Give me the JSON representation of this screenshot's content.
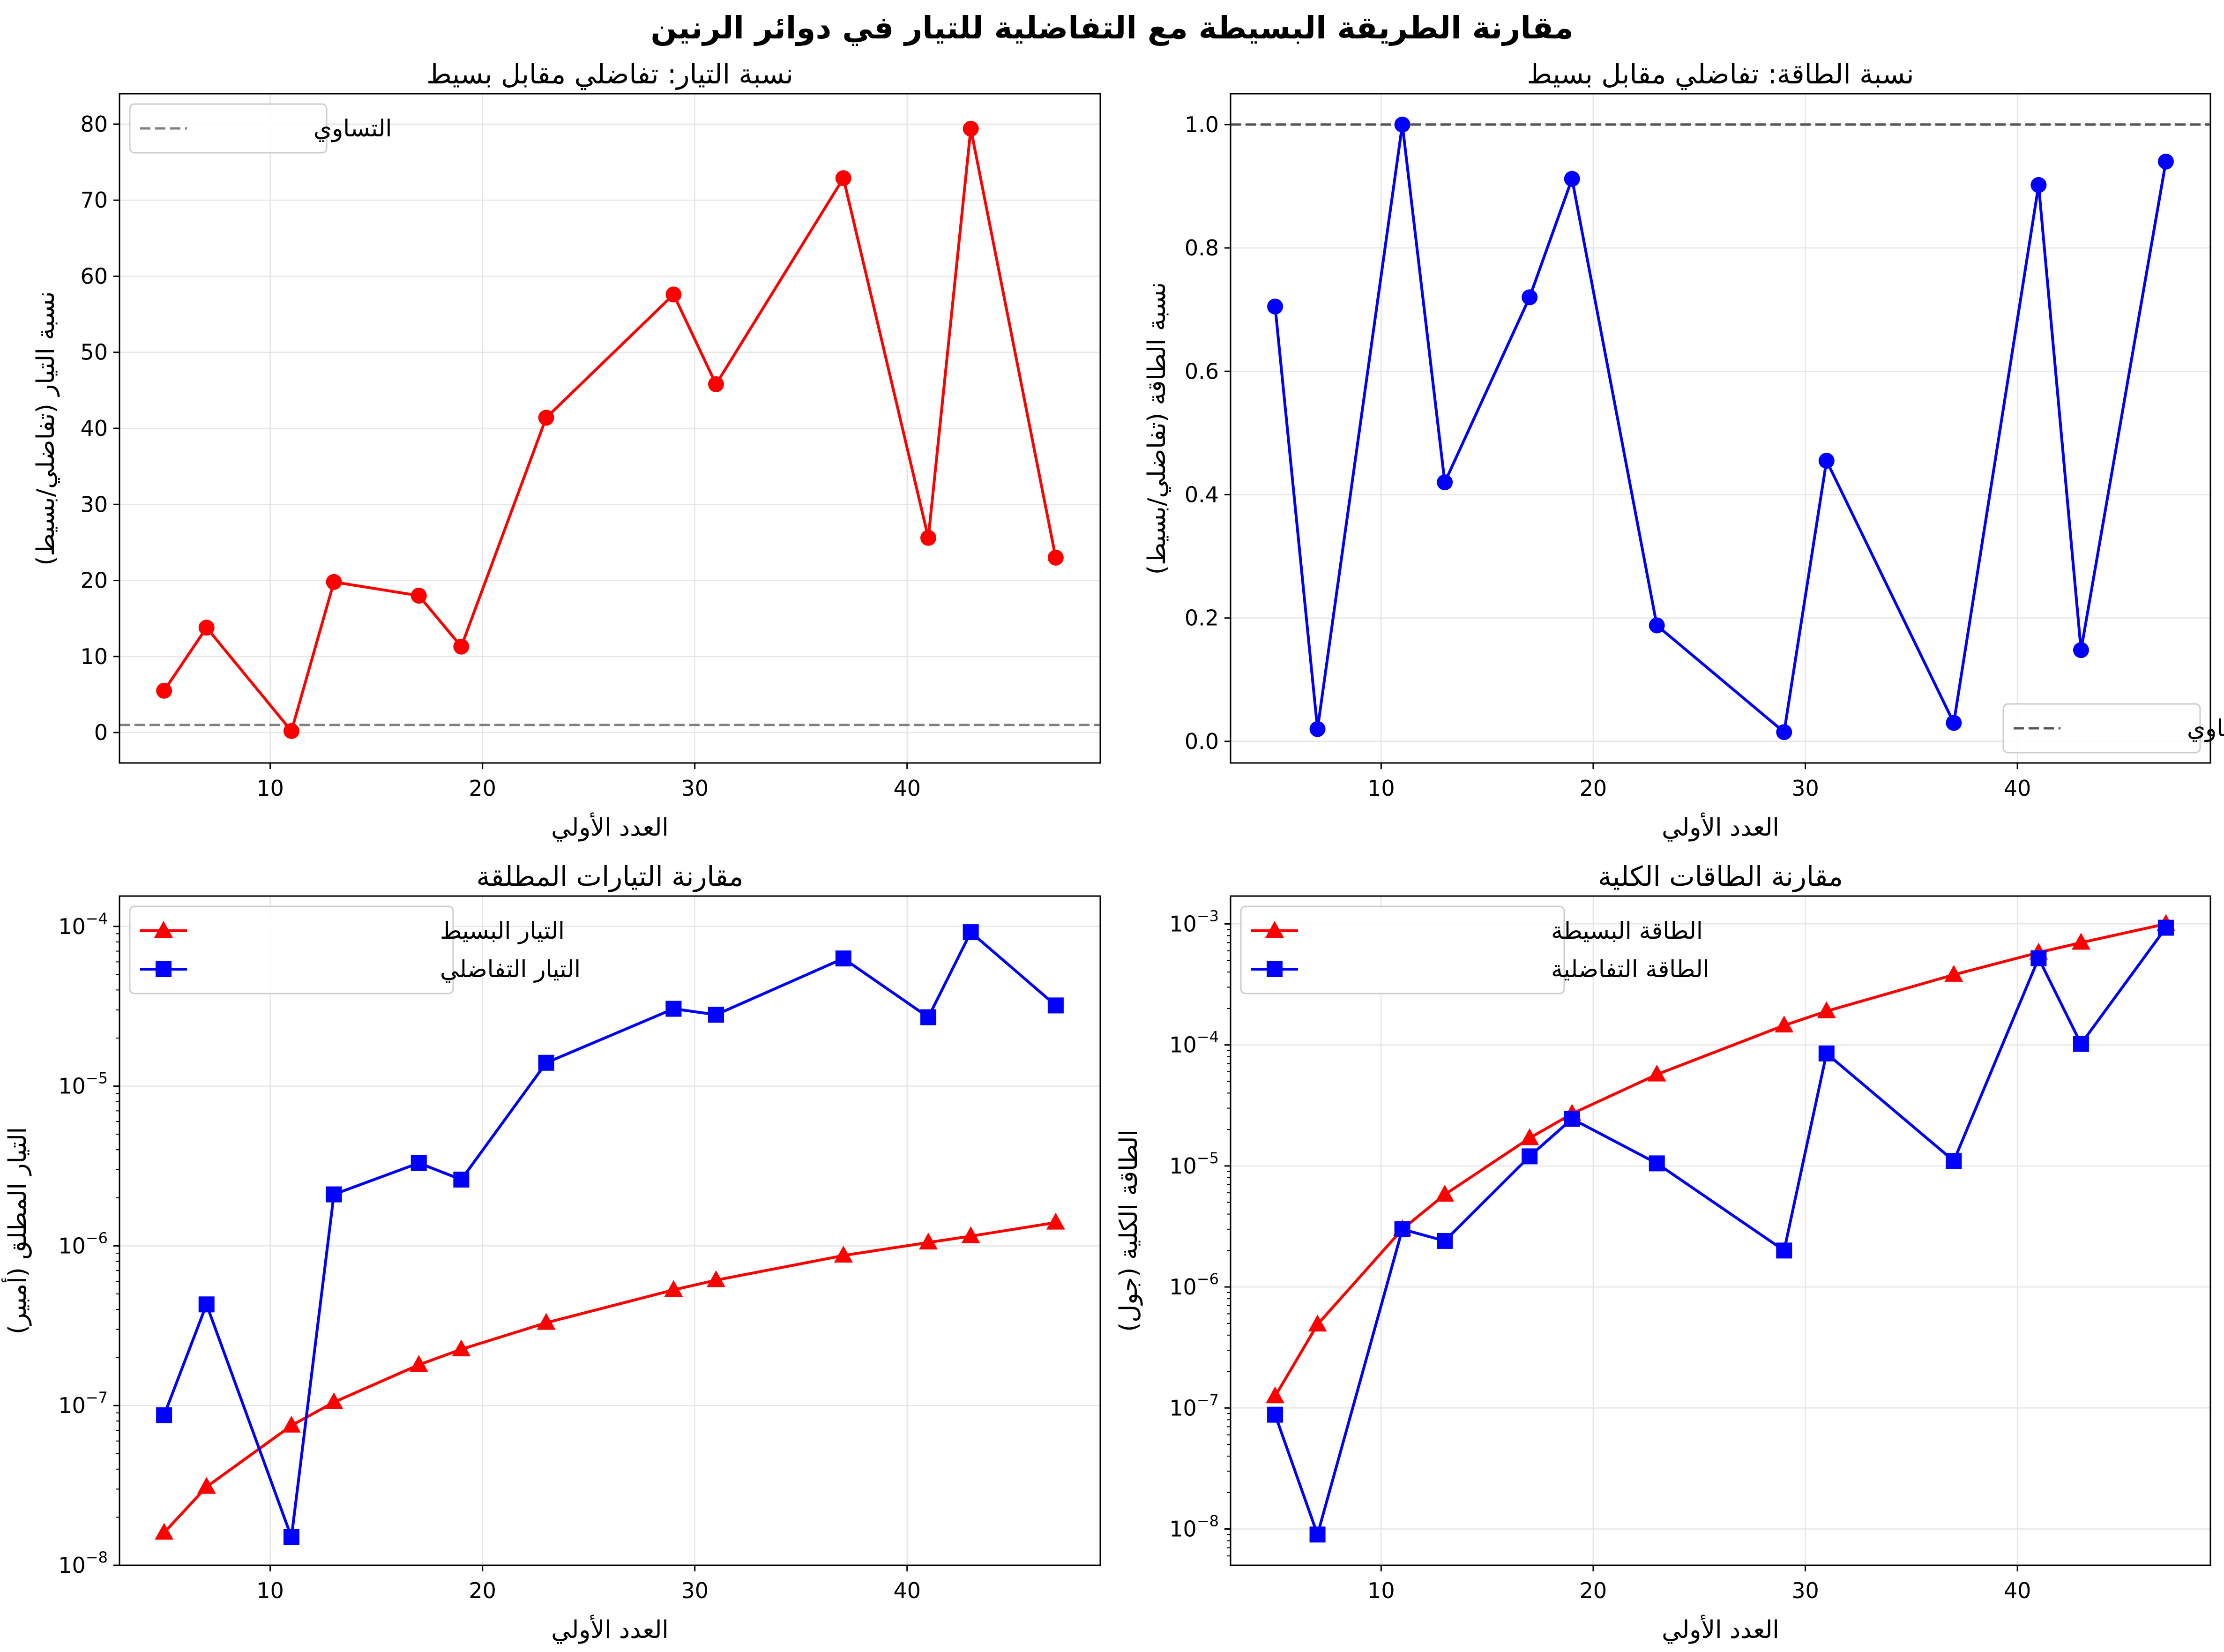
{
  "figure": {
    "title": "مقارنة الطريقة البسيطة مع التفاضلية للتيار في دوائر الرنين"
  },
  "chart_data": [
    {
      "type": "line",
      "title": "نسبة التيار: تفاضلي مقابل بسيط",
      "xlabel": "العدد الأولي",
      "ylabel": "نسبة التيار (تفاضلي/بسيط)",
      "xlim": [
        2.9,
        49.1
      ],
      "ylim": [
        -4,
        84
      ],
      "xticks": [
        10,
        20,
        30,
        40
      ],
      "yticks": [
        0,
        10,
        20,
        30,
        40,
        50,
        60,
        70,
        80
      ],
      "yscale": "linear",
      "grid": true,
      "legend_position": "upper left",
      "reference_line": {
        "y": 1,
        "label": "التساوي",
        "style": "dashed",
        "color": "#808080"
      },
      "x": [
        5,
        7,
        11,
        13,
        17,
        19,
        23,
        29,
        31,
        37,
        41,
        43,
        47
      ],
      "series": [
        {
          "name": "",
          "color": "#ff0000",
          "marker": "circle",
          "values": [
            5.5,
            13.8,
            0.2,
            19.8,
            18.0,
            11.3,
            41.4,
            57.6,
            45.8,
            72.9,
            25.6,
            79.4,
            23.0
          ]
        }
      ]
    },
    {
      "type": "line",
      "title": "نسبة الطاقة: تفاضلي مقابل بسيط",
      "xlabel": "العدد الأولي",
      "ylabel": "نسبة الطاقة (تفاضلي/بسيط)",
      "xlim": [
        2.9,
        49.1
      ],
      "ylim": [
        -0.035,
        1.05
      ],
      "xticks": [
        10,
        20,
        30,
        40
      ],
      "yticks": [
        0.0,
        0.2,
        0.4,
        0.6,
        0.8,
        1.0
      ],
      "ytick_labels": [
        "0.0",
        "0.2",
        "0.4",
        "0.6",
        "0.8",
        "1.0"
      ],
      "yscale": "linear",
      "grid": true,
      "legend_position": "lower right",
      "reference_line": {
        "y": 1,
        "label": "التساوي",
        "style": "dashed",
        "color": "#555555"
      },
      "x": [
        5,
        7,
        11,
        13,
        17,
        19,
        23,
        29,
        31,
        37,
        41,
        43,
        47
      ],
      "series": [
        {
          "name": "",
          "color": "#0000ff",
          "marker": "circle",
          "values": [
            0.705,
            0.02,
            1.0,
            0.42,
            0.72,
            0.912,
            0.188,
            0.015,
            0.455,
            0.03,
            0.902,
            0.148,
            0.94
          ]
        }
      ]
    },
    {
      "type": "line",
      "title": "مقارنة التيارات المطلقة",
      "xlabel": "العدد الأولي",
      "ylabel": "التيار المطلق (أمبير)",
      "xlim": [
        2.9,
        49.1
      ],
      "ylog": [
        -8,
        -3.81
      ],
      "yscale": "log",
      "xticks": [
        10,
        20,
        30,
        40
      ],
      "ytick_exponents": [
        -8,
        -7,
        -6,
        -5,
        -4
      ],
      "grid": true,
      "legend_position": "upper left",
      "x": [
        5,
        7,
        11,
        13,
        17,
        19,
        23,
        29,
        31,
        37,
        41,
        43,
        47
      ],
      "series": [
        {
          "name": "التيار البسيط",
          "color": "#ff0000",
          "marker": "triangle",
          "values": [
            1.6e-08,
            3.1e-08,
            7.5e-08,
            1.05e-07,
            1.8e-07,
            2.25e-07,
            3.3e-07,
            5.3e-07,
            6.1e-07,
            8.7e-07,
            1.05e-06,
            1.15e-06,
            1.4e-06
          ]
        },
        {
          "name": "التيار التفاضلي",
          "color": "#0000ff",
          "marker": "square",
          "values": [
            8.7e-08,
            4.3e-07,
            1.5e-08,
            2.1e-06,
            3.3e-06,
            2.6e-06,
            1.4e-05,
            3.05e-05,
            2.8e-05,
            6.3e-05,
            2.7e-05,
            9.2e-05,
            3.2e-05
          ]
        }
      ]
    },
    {
      "type": "line",
      "title": "مقارنة الطاقات الكلية",
      "xlabel": "العدد الأولي",
      "ylabel": "الطاقة الكلية (جول)",
      "xlim": [
        2.9,
        49.1
      ],
      "ylog": [
        -8.3,
        -2.77
      ],
      "yscale": "log",
      "xticks": [
        10,
        20,
        30,
        40
      ],
      "ytick_exponents": [
        -8,
        -7,
        -6,
        -5,
        -4,
        -3
      ],
      "grid": true,
      "legend_position": "upper left",
      "x": [
        5,
        7,
        11,
        13,
        17,
        19,
        23,
        29,
        31,
        37,
        41,
        43,
        47
      ],
      "series": [
        {
          "name": "الطاقة البسيطة",
          "color": "#ff0000",
          "marker": "triangle",
          "values": [
            1.25e-07,
            4.9e-07,
            3e-06,
            5.8e-06,
            1.7e-05,
            2.7e-05,
            5.7e-05,
            0.000145,
            0.00019,
            0.00038,
            0.00058,
            0.0007,
            0.001
          ]
        },
        {
          "name": "الطاقة التفاضلية",
          "color": "#0000ff",
          "marker": "square",
          "values": [
            8.8e-08,
            9e-09,
            3e-06,
            2.4e-06,
            1.2e-05,
            2.45e-05,
            1.05e-05,
            2e-06,
            8.5e-05,
            1.1e-05,
            0.00052,
            0.000102,
            0.00093
          ]
        }
      ]
    }
  ]
}
